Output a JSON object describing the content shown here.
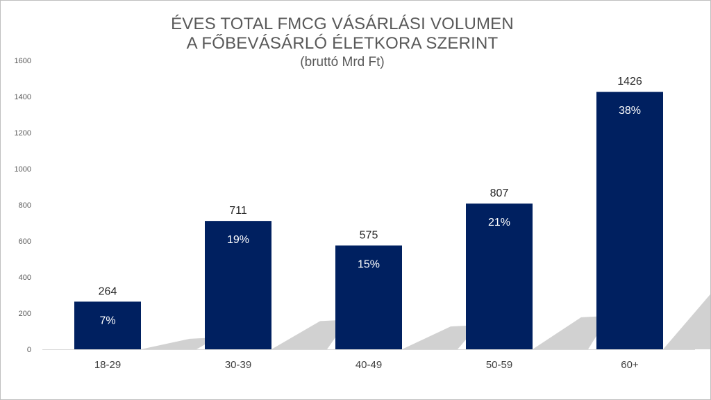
{
  "chart_data": {
    "type": "bar",
    "title_line1": "ÉVES TOTAL FMCG VÁSÁRLÁSI VOLUMEN",
    "title_line2": "A FŐBEVÁSÁRLÓ ÉLETKORA SZERINT",
    "subtitle": "(bruttó Mrd Ft)",
    "categories": [
      "18-29",
      "30-39",
      "40-49",
      "50-59",
      "60+"
    ],
    "values": [
      264,
      711,
      575,
      807,
      1426
    ],
    "value_labels": [
      "264",
      "711",
      "575",
      "807",
      "1426"
    ],
    "percent_labels": [
      "7%",
      "19%",
      "15%",
      "21%",
      "38%"
    ],
    "ylim": [
      0,
      1600
    ],
    "yticks": [
      "0",
      "200",
      "400",
      "600",
      "800",
      "1000",
      "1200",
      "1400",
      "1600"
    ],
    "grid": false,
    "legend": "none",
    "bar_color": "#002060",
    "shadow_color": "#c9c9c9"
  }
}
